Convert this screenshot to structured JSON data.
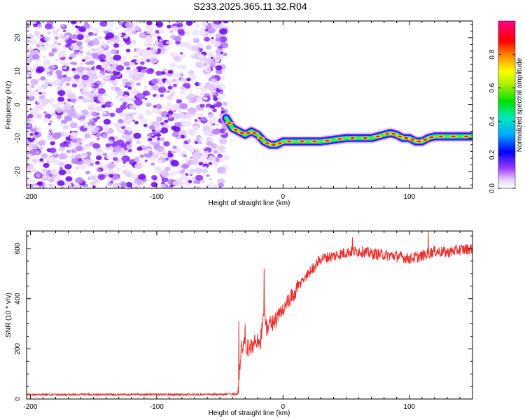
{
  "title": "S233.2025.365.11.32.R04",
  "chart_data": [
    {
      "type": "heatmap",
      "name": "spectrogram",
      "xlabel": "Height of straight line (km)",
      "ylabel": "Frequency (Hz)",
      "xlim": [
        -203,
        150
      ],
      "ylim": [
        -25,
        25
      ],
      "xticks": [
        -200,
        -100,
        0,
        100
      ],
      "yticks": [
        -20,
        -10,
        0,
        10,
        20
      ],
      "noise_region_x": [
        -203,
        -45
      ],
      "signal_track": {
        "x": [
          -45,
          -40,
          -35,
          -30,
          -25,
          -20,
          -15,
          -10,
          -5,
          0,
          10,
          20,
          30,
          40,
          50,
          60,
          70,
          80,
          85,
          90,
          95,
          100,
          105,
          110,
          115,
          120,
          130,
          140,
          150
        ],
        "freq_hz": [
          -4,
          -7,
          -8,
          -9,
          -8,
          -9,
          -11,
          -12,
          -12,
          -11,
          -11,
          -11,
          -11,
          -10.5,
          -10,
          -10,
          -10,
          -9,
          -8.5,
          -9,
          -10,
          -10,
          -11,
          -11,
          -10,
          -9.5,
          -9.5,
          -9.5,
          -9.5
        ]
      },
      "colorbar": {
        "label": "Normalized spectral amplitude",
        "ticks": [
          0.0,
          0.2,
          0.4,
          0.6,
          0.8
        ],
        "tick_labels": [
          "0.0",
          "0.2",
          "0.4",
          "0.6",
          "0.8"
        ],
        "range": [
          0,
          1
        ]
      }
    },
    {
      "type": "line",
      "name": "snr",
      "xlabel": "Height of straight line (km)",
      "ylabel": "SNR (10 * v/v)",
      "xlim": [
        -203,
        150
      ],
      "ylim": [
        0,
        670
      ],
      "xticks": [
        -200,
        -100,
        0,
        100
      ],
      "yticks": [
        0,
        200,
        400,
        600
      ],
      "color": "#e8302e",
      "series": {
        "x": [
          -203,
          -150,
          -100,
          -50,
          -36,
          -35,
          -33,
          -30,
          -28,
          -25,
          -20,
          -18,
          -15,
          -13,
          -12,
          -10,
          -5,
          0,
          5,
          10,
          15,
          20,
          25,
          30,
          40,
          50,
          60,
          70,
          80,
          90,
          100,
          110,
          120,
          130,
          140,
          150
        ],
        "y": [
          18,
          18,
          18,
          18,
          20,
          60,
          200,
          220,
          200,
          210,
          240,
          230,
          350,
          280,
          290,
          300,
          320,
          360,
          390,
          430,
          470,
          500,
          530,
          560,
          570,
          585,
          590,
          580,
          575,
          570,
          560,
          570,
          590,
          585,
          595,
          600
        ]
      },
      "spikes": [
        {
          "x": -15,
          "y": 520
        },
        {
          "x": -35,
          "y": 310
        },
        {
          "x": -30,
          "y": 300
        },
        {
          "x": 115,
          "y": 670
        },
        {
          "x": 55,
          "y": 645
        }
      ]
    }
  ]
}
